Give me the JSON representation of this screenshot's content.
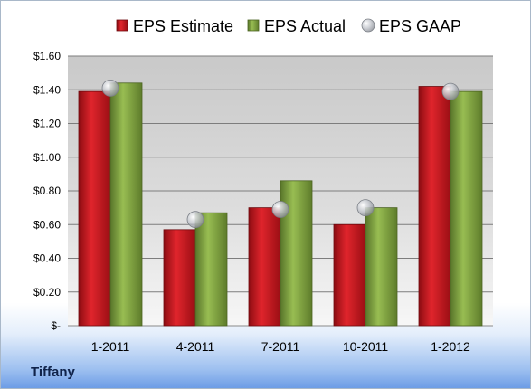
{
  "chart_data": {
    "type": "bar",
    "categories": [
      "1-2011",
      "4-2011",
      "7-2011",
      "10-2011",
      "1-2012"
    ],
    "series": [
      {
        "name": "EPS Estimate",
        "kind": "bar",
        "color": "#c8141c",
        "values": [
          1.39,
          0.57,
          0.7,
          0.6,
          1.42
        ]
      },
      {
        "name": "EPS Actual",
        "kind": "bar",
        "color": "#7fa23a",
        "values": [
          1.44,
          0.67,
          0.86,
          0.7,
          1.39
        ]
      },
      {
        "name": "EPS GAAP",
        "kind": "marker",
        "color": "#b9bcc2",
        "values": [
          1.41,
          0.63,
          0.69,
          0.7,
          1.39
        ]
      }
    ],
    "y_ticks": [
      "$-",
      "$0.20",
      "$0.40",
      "$0.60",
      "$0.80",
      "$1.00",
      "$1.20",
      "$1.40",
      "$1.60"
    ],
    "ylim": [
      0,
      1.6
    ],
    "grid": true,
    "legend_position": "top",
    "title": "",
    "xlabel": "",
    "ylabel": ""
  },
  "company": "Tiffany"
}
